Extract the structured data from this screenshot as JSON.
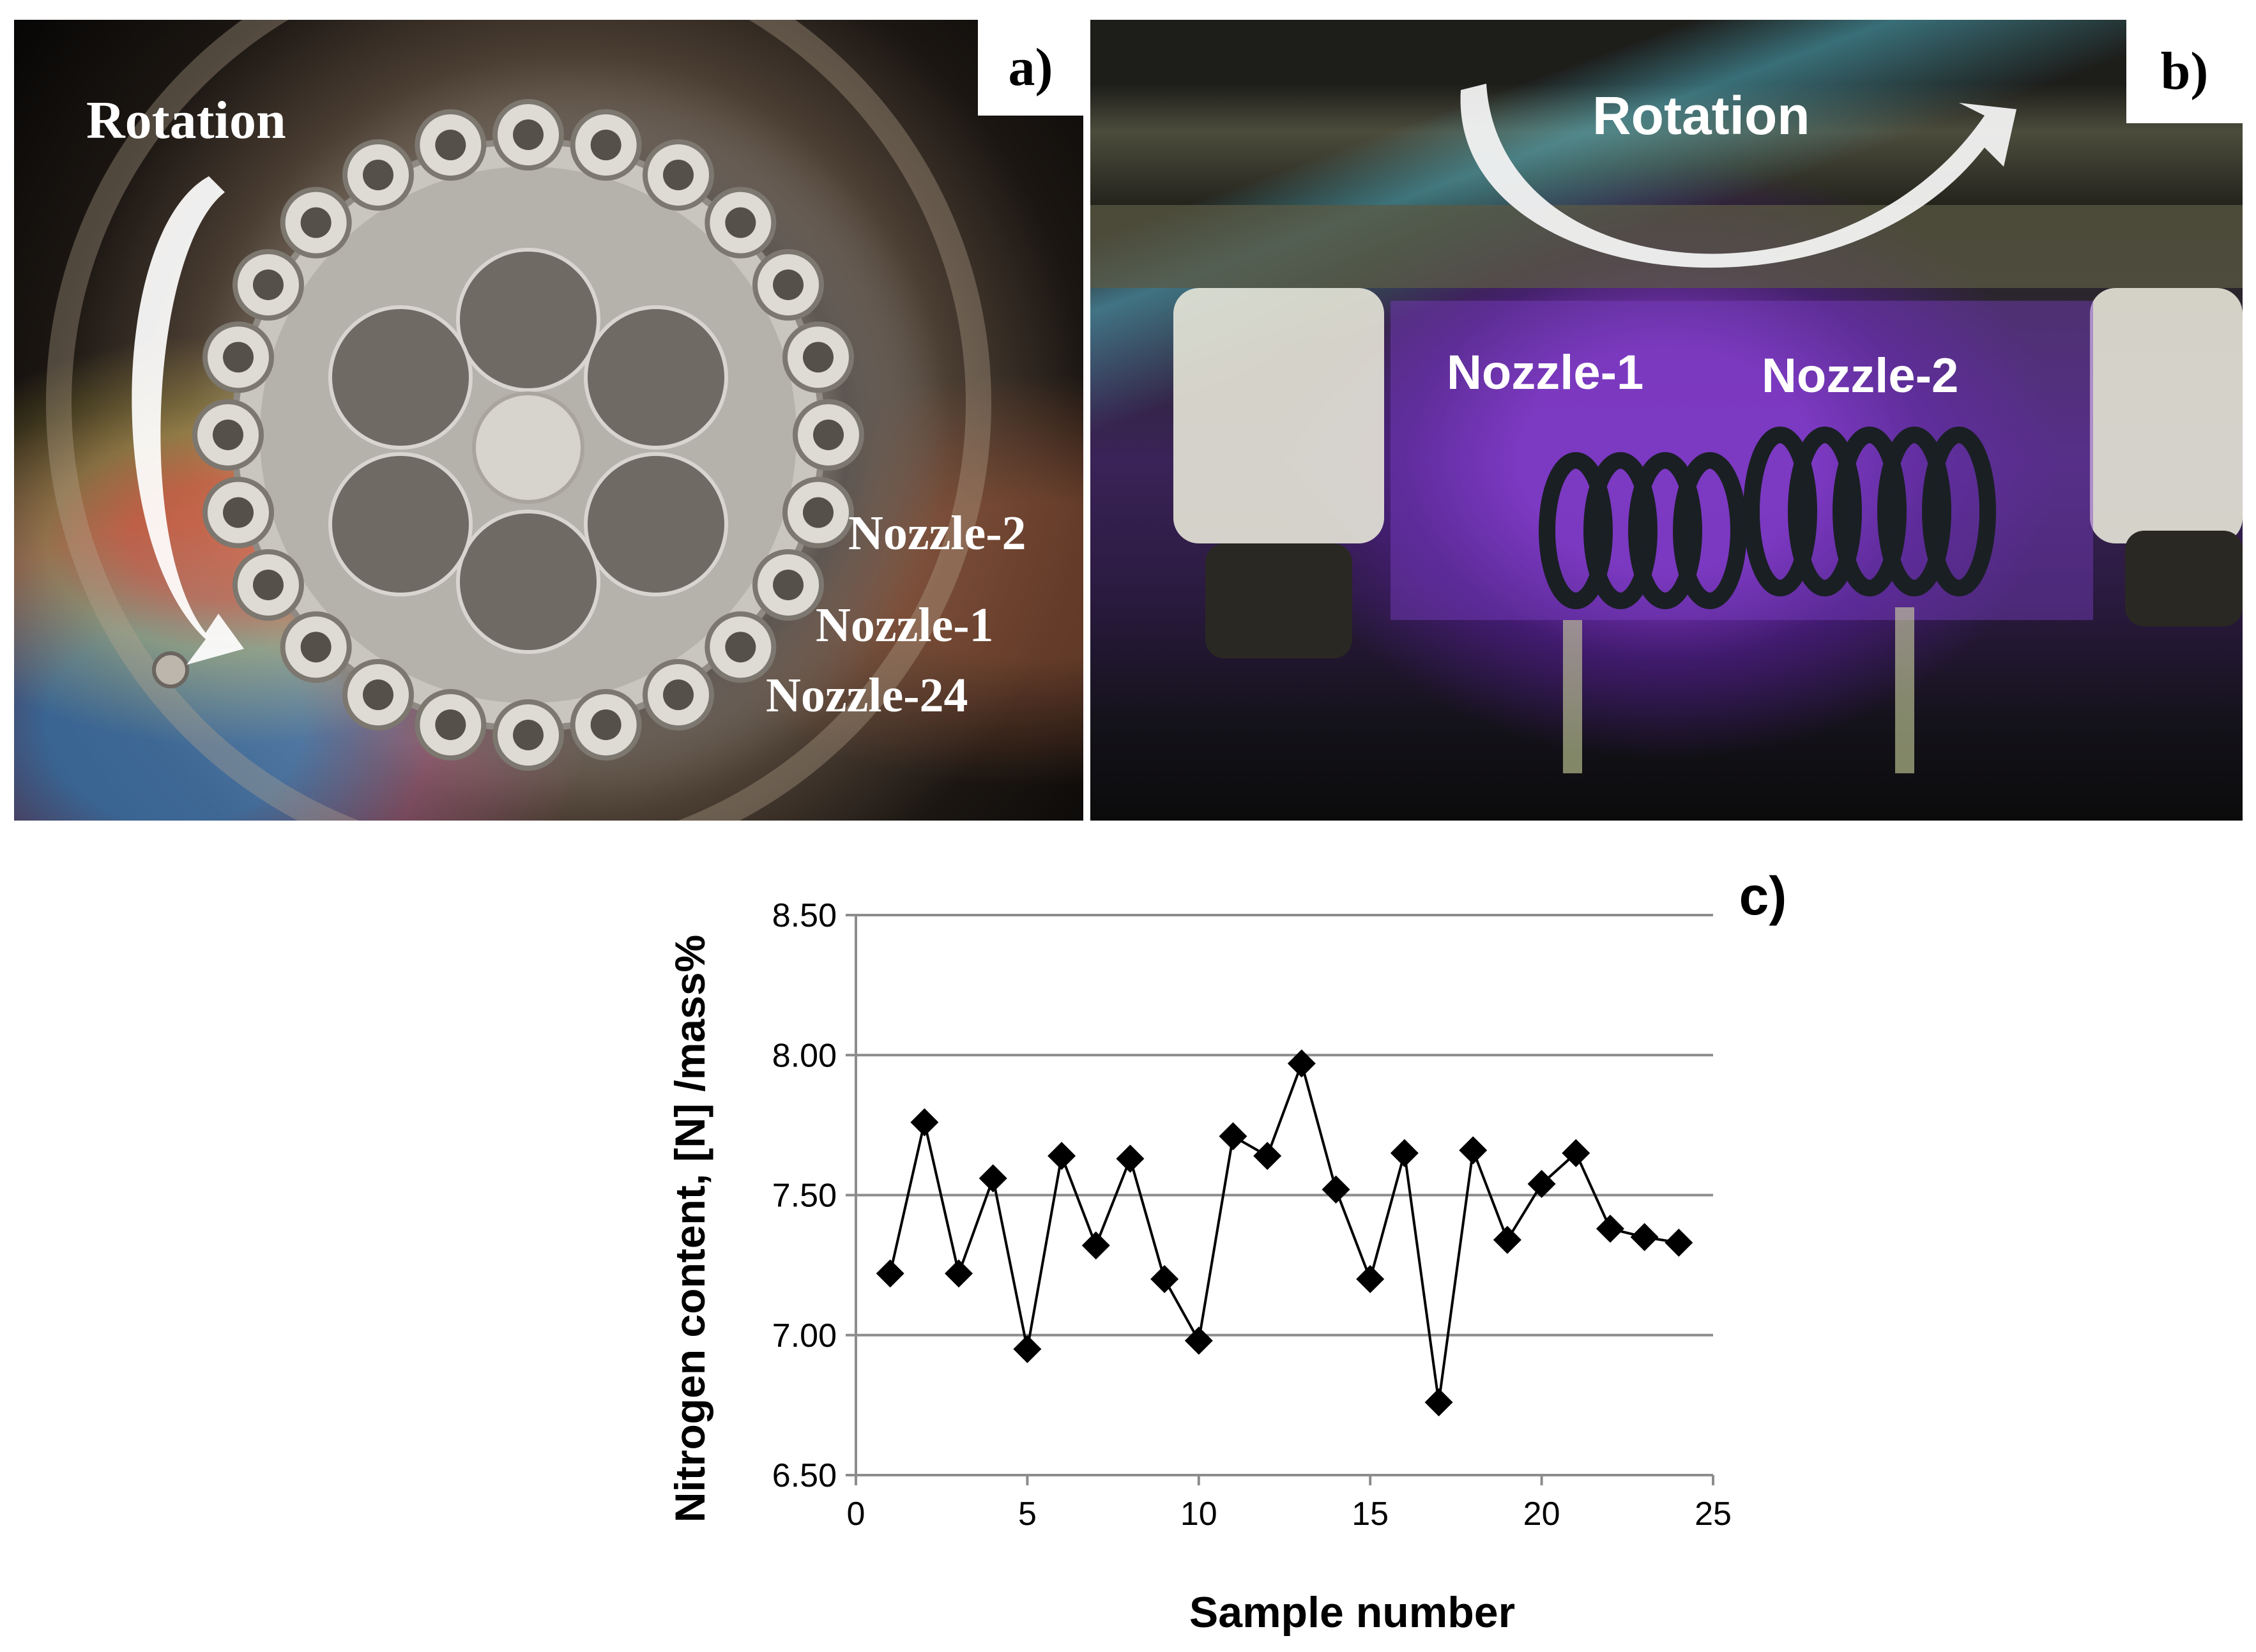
{
  "panel_a": {
    "tag": "a)",
    "rotation_label": "Rotation",
    "nozzle_labels": [
      "Nozzle-2",
      "Nozzle-1",
      "Nozzle-24"
    ]
  },
  "panel_b": {
    "tag": "b)",
    "rotation_label": "Rotation",
    "nozzle_labels": [
      "Nozzle-1",
      "Nozzle-2"
    ]
  },
  "panel_c": {
    "tag": "c)"
  },
  "chart_data": {
    "type": "scatter",
    "line": true,
    "marker": "diamond",
    "xlabel": "Sample number",
    "ylabel": "Nitrogen content, [N] /mass%",
    "xlim": [
      0,
      25
    ],
    "ylim": [
      6.5,
      8.5
    ],
    "xticks": [
      0,
      5,
      10,
      15,
      20,
      25
    ],
    "yticks": [
      6.5,
      7.0,
      7.5,
      8.0,
      8.5
    ],
    "ytick_labels": [
      "6.50",
      "7.00",
      "7.50",
      "8.00",
      "8.50"
    ],
    "grid": "horizontal",
    "series": [
      {
        "x": [
          1,
          2,
          3,
          4,
          5,
          6,
          7,
          8,
          9,
          10,
          11,
          12,
          13,
          14,
          15,
          16,
          17,
          18,
          19,
          20,
          21,
          22,
          23,
          24
        ],
        "y": [
          7.22,
          7.76,
          7.22,
          7.56,
          6.95,
          7.64,
          7.32,
          7.63,
          7.2,
          6.98,
          7.71,
          7.64,
          7.97,
          7.52,
          7.2,
          7.65,
          6.76,
          7.66,
          7.34,
          7.54,
          7.65,
          7.38,
          7.35,
          7.33
        ]
      }
    ]
  }
}
